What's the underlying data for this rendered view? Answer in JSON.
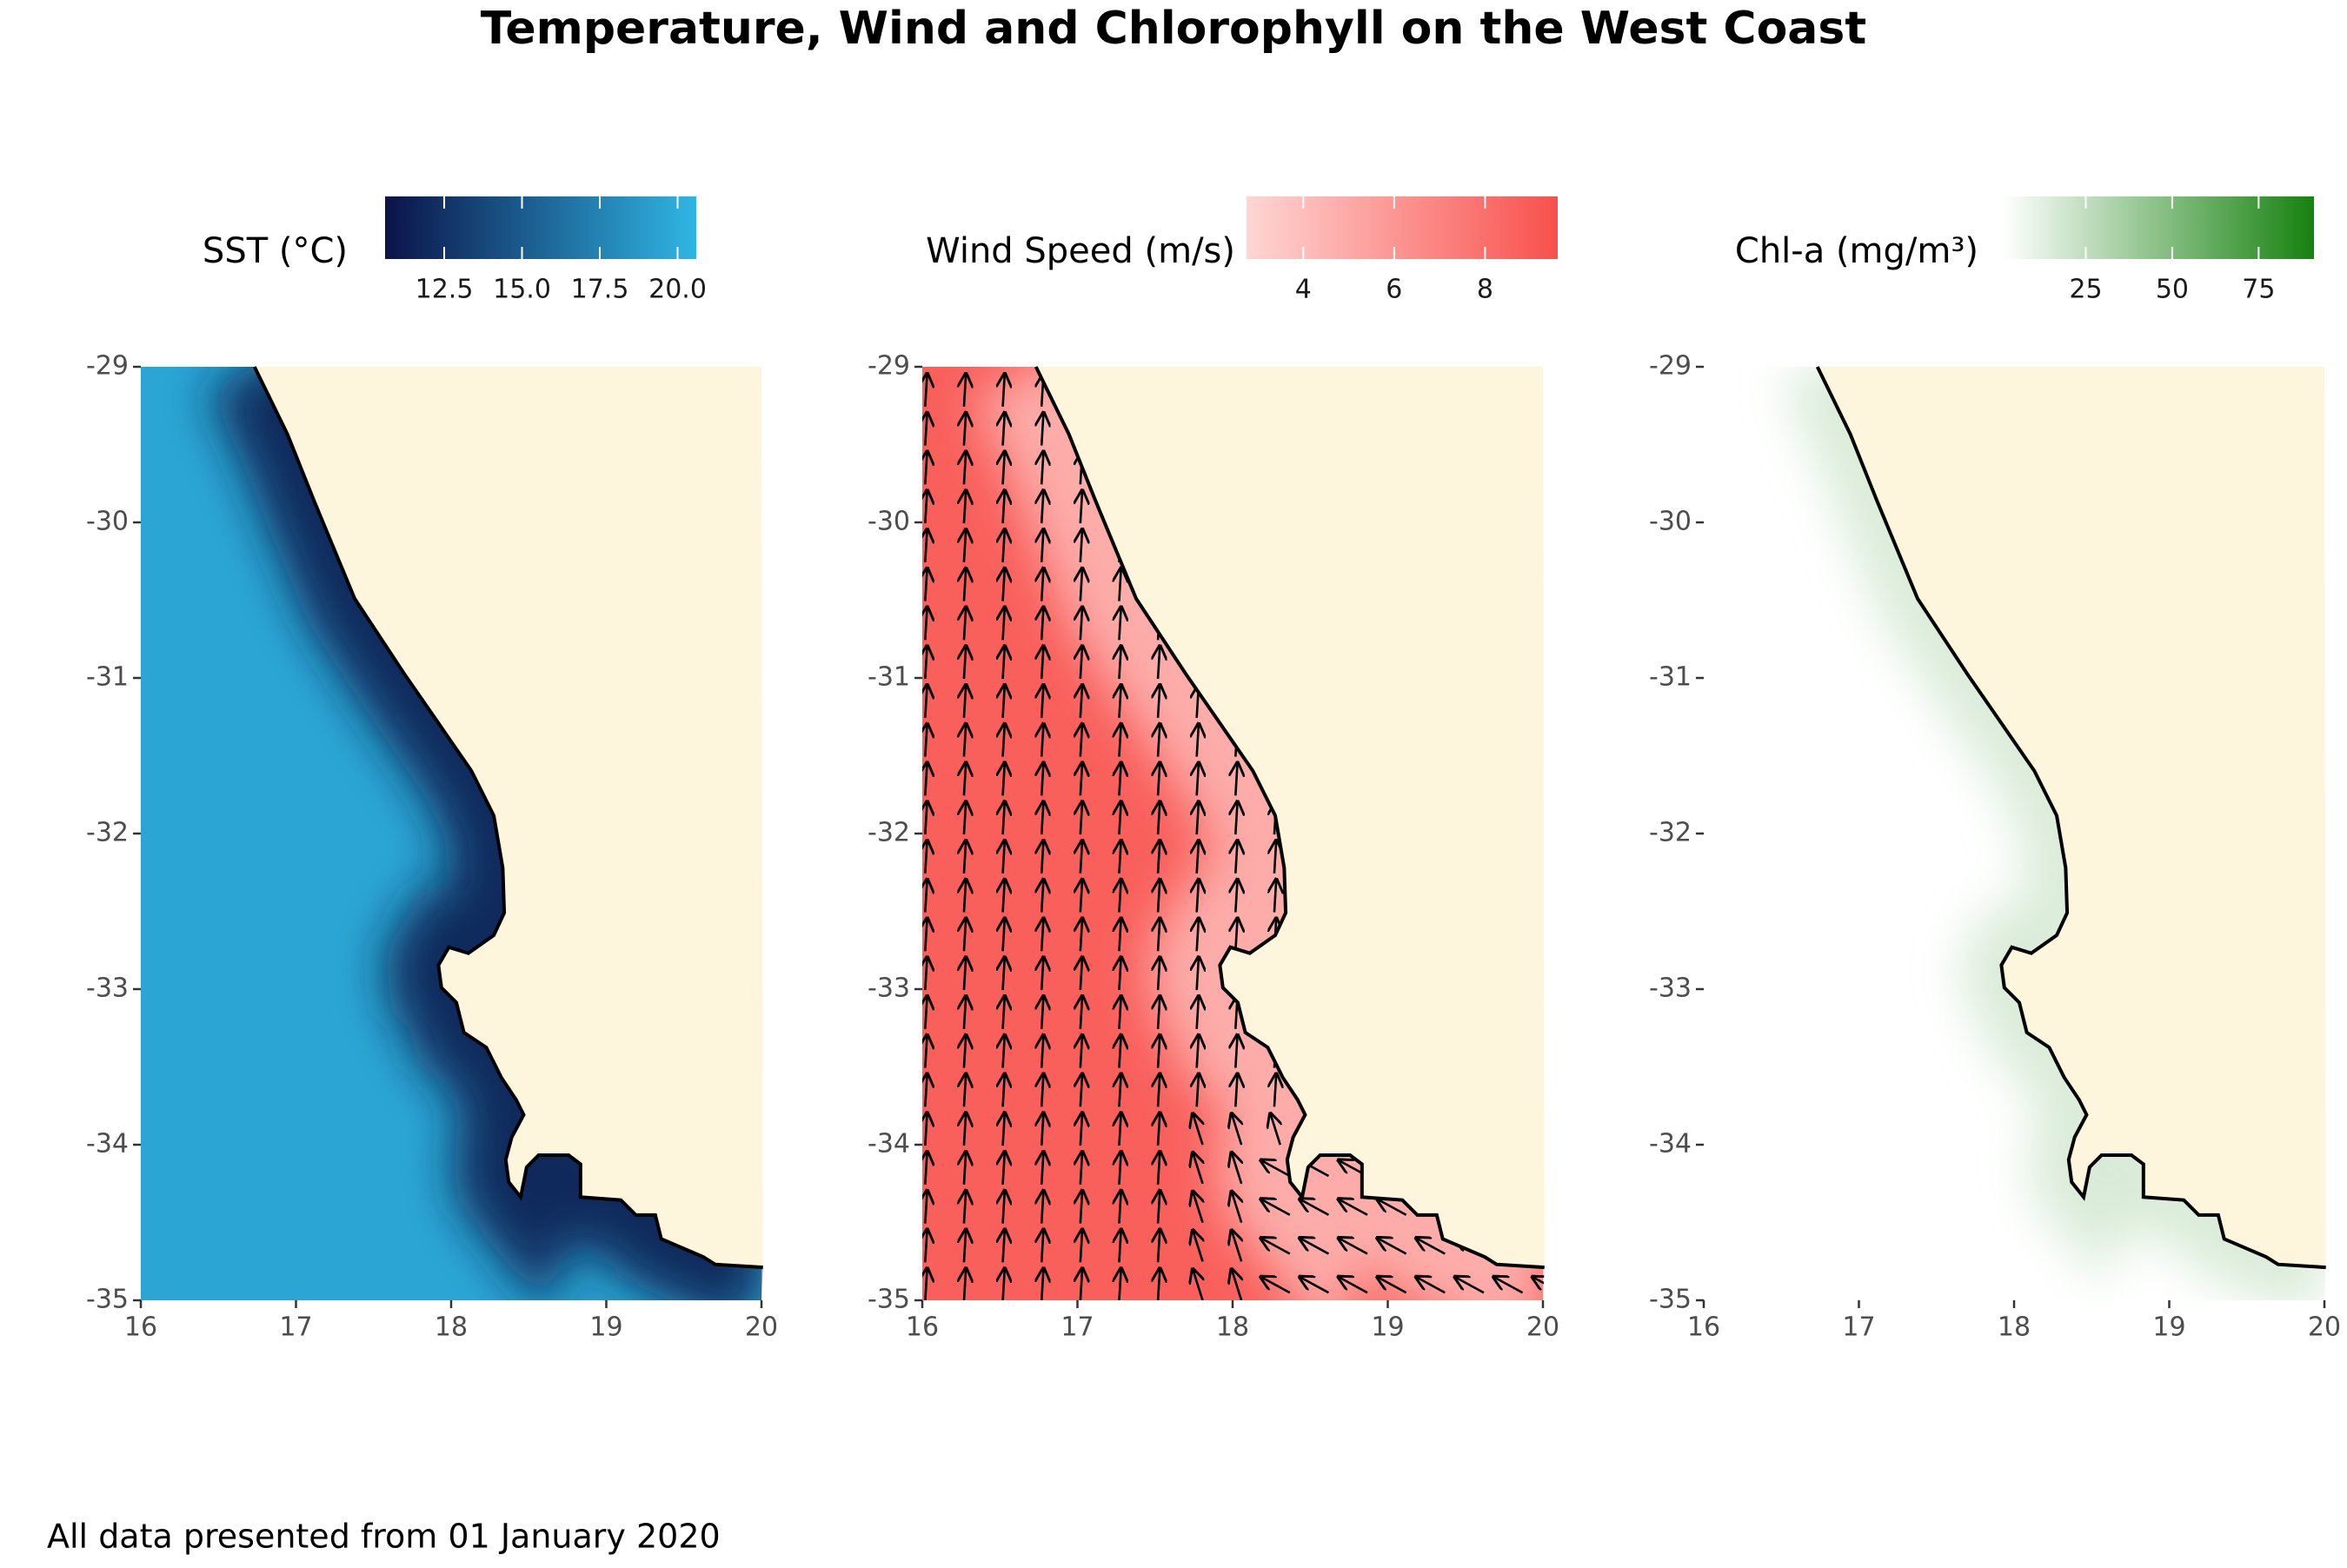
{
  "title": "Temperature, Wind and Chlorophyll on the West Coast",
  "caption": "All data presented from 01 January 2020",
  "chart_data": [
    {
      "type": "heatmap",
      "legend": {
        "title": "SST (°C)",
        "lim": [
          10.6,
          20.6
        ],
        "ticks": [
          12.5,
          {
            "value": 15,
            "label": "15.0"
          },
          17.5,
          {
            "value": 20,
            "label": "20.0"
          }
        ],
        "colors": [
          "#0b1348",
          "#2fb6e4"
        ]
      },
      "xlim": [
        16,
        20
      ],
      "ylim": [
        -35,
        -29
      ],
      "xticks": [
        16,
        17,
        18,
        19,
        20
      ],
      "yticks": [
        -35,
        -34,
        -33,
        -32,
        -31,
        -30,
        -29
      ]
    },
    {
      "type": "quiver",
      "legend": {
        "title": "Wind Speed (m/s)",
        "lim": [
          2.75,
          9.6
        ],
        "ticks": [
          4,
          6,
          8
        ],
        "colors": [
          "#ffd6d4",
          "#f8504c"
        ]
      },
      "xlim": [
        16,
        20
      ],
      "ylim": [
        -35,
        -29
      ],
      "xticks": [
        16,
        17,
        18,
        19,
        20
      ],
      "yticks": [
        -35,
        -34,
        -33,
        -32,
        -31,
        -30,
        -29
      ]
    },
    {
      "type": "heatmap",
      "legend": {
        "title": "Chl-a (mg/m³)",
        "lim": [
          1,
          91
        ],
        "ticks": [
          25,
          50,
          75
        ],
        "colors": [
          "#ffffff",
          "#16820f"
        ]
      },
      "xlim": [
        16,
        20
      ],
      "ylim": [
        -35,
        -29
      ],
      "xticks": [
        16,
        17,
        18,
        19,
        20
      ],
      "yticks": [
        -35,
        -34,
        -33,
        -32,
        -31,
        -30,
        -29
      ]
    }
  ]
}
